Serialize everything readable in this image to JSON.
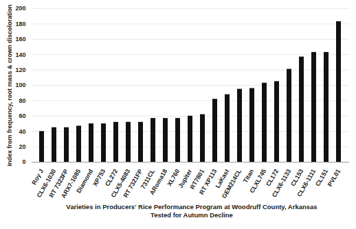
{
  "chart_data": {
    "type": "bar",
    "xlabel": "Varieties in Producers' Rice Performance Program at Woodruff County, Arkansas\nTested for Autumn Decline",
    "ylabel": "Index from frequency, root mass & crown discoloration",
    "categories": [
      "Roy J",
      "CLX6-1030",
      "RT 7323FP",
      "ARX7-1085",
      "Diamond",
      "XP753",
      "CL272",
      "CLX5-4083",
      "RT 7321FP",
      "7311CL",
      "ARoma18",
      "XL760",
      "Jupiter",
      "RT7801",
      "RT XP113",
      "LaKast",
      "GEM214CL",
      "Titan",
      "CLXL745",
      "CL172",
      "CLX6-1133",
      "CL153",
      "CLX6-1111",
      "CL151",
      "PVL01"
    ],
    "values": [
      40,
      45,
      45,
      47,
      50,
      50,
      52,
      52,
      52,
      57,
      57,
      57,
      60,
      62,
      82,
      88,
      95,
      96,
      103,
      105,
      121,
      137,
      143,
      143,
      183
    ],
    "color": "#111111",
    "ylim": [
      0,
      200
    ],
    "yticks": [
      0,
      20,
      40,
      60,
      80,
      100,
      120,
      140,
      160,
      180,
      200
    ],
    "grid": true
  }
}
